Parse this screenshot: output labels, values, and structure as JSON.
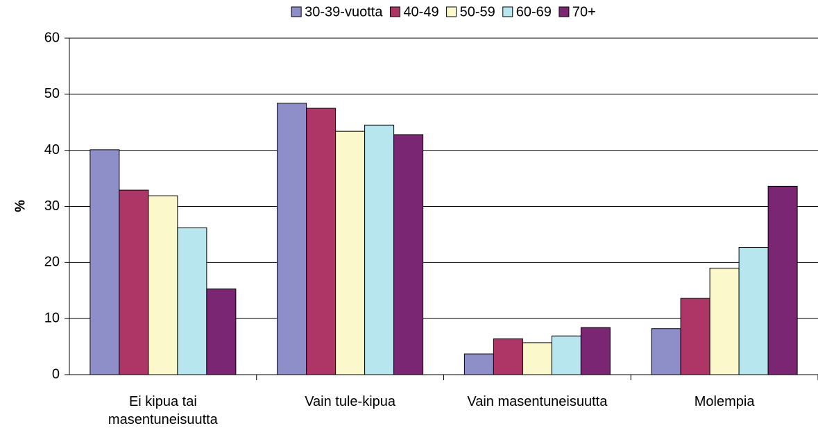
{
  "chart_data": {
    "type": "bar",
    "y_label": "%",
    "categories": [
      "Ei kipua tai masentuneisuutta",
      "Vain tule-kipua",
      "Vain masentuneisuutta",
      "Molempia"
    ],
    "series": [
      {
        "name": "30-39-vuotta",
        "color": "#8e8fc8",
        "values": [
          40.1,
          48.4,
          3.7,
          8.2
        ]
      },
      {
        "name": "40-49",
        "color": "#ad3667",
        "values": [
          32.9,
          47.5,
          6.4,
          13.6
        ]
      },
      {
        "name": "50-59",
        "color": "#fbf8cc",
        "values": [
          31.9,
          43.4,
          5.7,
          19.0
        ]
      },
      {
        "name": "60-69",
        "color": "#b7e6ee",
        "values": [
          26.2,
          44.5,
          6.9,
          22.7
        ]
      },
      {
        "name": "70+",
        "color": "#7a2673",
        "values": [
          15.3,
          42.8,
          8.4,
          33.6
        ]
      }
    ],
    "ylim": [
      0,
      60
    ],
    "yticks": [
      0,
      10,
      20,
      30,
      40,
      50,
      60
    ],
    "grid": true,
    "legend": "top"
  }
}
